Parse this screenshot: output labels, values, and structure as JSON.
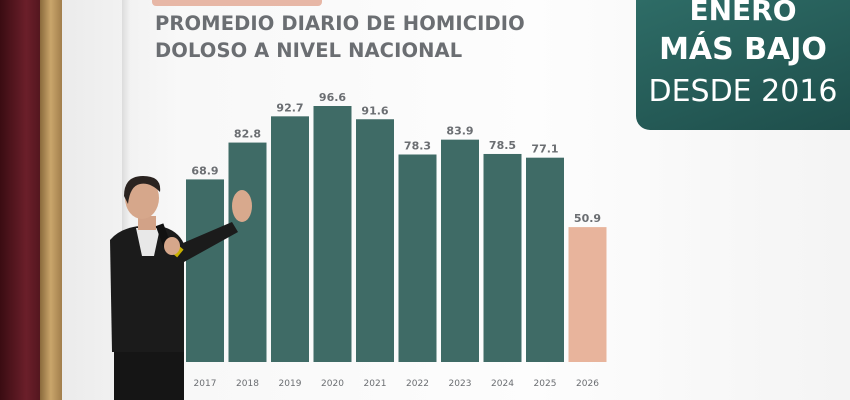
{
  "header": {
    "title_line1": "PROMEDIO DIARIO DE HOMICIDIO",
    "title_line2": "DOLOSO A NIVEL NACIONAL"
  },
  "callout": {
    "line1": "ENERO",
    "line2": "MÁS BAJO",
    "line3": "DESDE 2016"
  },
  "colors": {
    "bar": "#3f6b66",
    "highlight": "#e8b49c",
    "label": "#6b6e72",
    "callout": "#2a615c"
  },
  "chart_data": {
    "type": "bar",
    "title": "PROMEDIO DIARIO DE HOMICIDIO DOLOSO A NIVEL NACIONAL",
    "categories": [
      "2017",
      "2018",
      "2019",
      "2020",
      "2021",
      "2022",
      "2023",
      "2024",
      "2025",
      "2026"
    ],
    "values": [
      68.9,
      82.8,
      92.7,
      96.6,
      91.6,
      78.3,
      83.9,
      78.5,
      77.1,
      50.9
    ],
    "value_labels": [
      "68.9",
      "82.8",
      "92.7",
      "96.6",
      "91.6",
      "78.3",
      "83.9",
      "78.5",
      "77.1",
      "50.9"
    ],
    "highlight_index": 9,
    "ylim": [
      0,
      100
    ],
    "grid": false,
    "xlabel": "",
    "ylabel": ""
  }
}
